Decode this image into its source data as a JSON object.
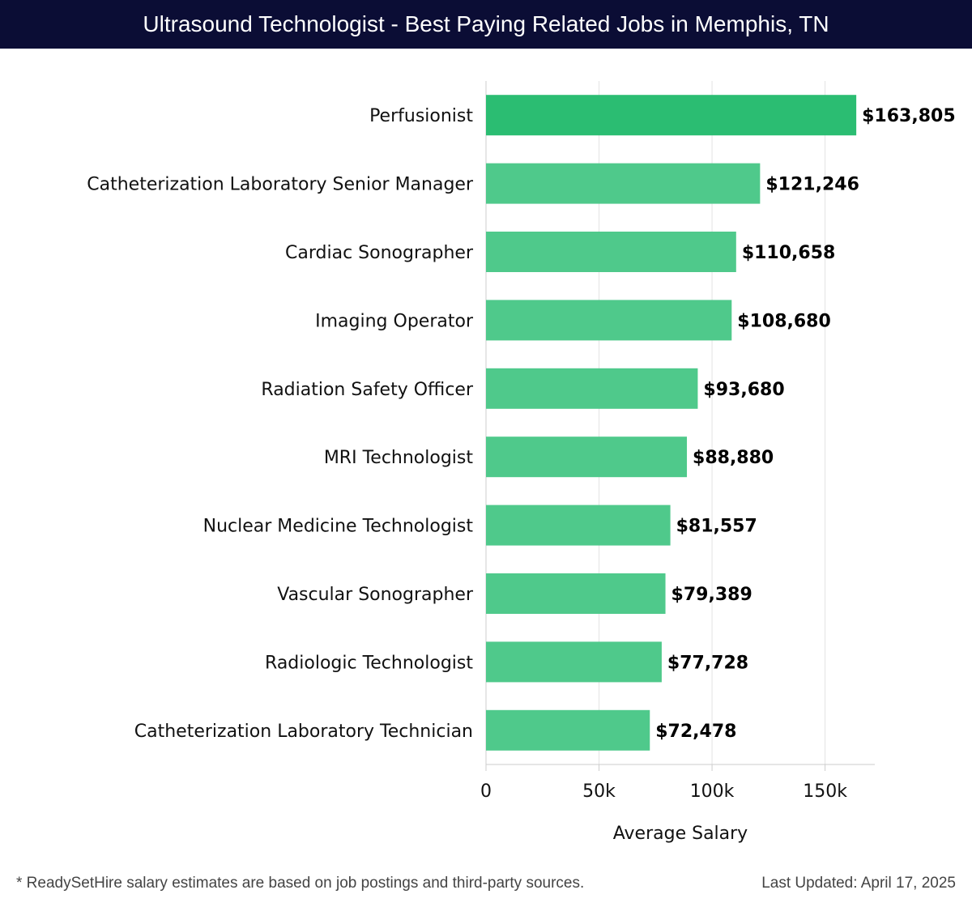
{
  "header": {
    "title": "Ultrasound Technologist - Best Paying Related Jobs in Memphis, TN"
  },
  "footer": {
    "note": "* ReadySetHire salary estimates are based on job postings and third-party sources.",
    "updated": "Last Updated: April 17, 2025"
  },
  "colors": {
    "title_bg": "#0b0d35",
    "bar_top": "#2bbd72",
    "bar_rest": "#4fc98b"
  },
  "chart_data": {
    "type": "bar",
    "orientation": "horizontal",
    "categories": [
      "Perfusionist",
      "Catheterization Laboratory Senior Manager",
      "Cardiac Sonographer",
      "Imaging Operator",
      "Radiation Safety Officer",
      "MRI Technologist",
      "Nuclear Medicine Technologist",
      "Vascular Sonographer",
      "Radiologic Technologist",
      "Catheterization Laboratory Technician"
    ],
    "values": [
      163805,
      121246,
      110658,
      108680,
      93680,
      88880,
      81557,
      79389,
      77728,
      72478
    ],
    "value_labels": [
      "$163,805",
      "$121,246",
      "$110,658",
      "$108,680",
      "$93,680",
      "$88,880",
      "$81,557",
      "$79,389",
      "$77,728",
      "$72,478"
    ],
    "xlabel": "Average Salary",
    "xlim": [
      0,
      172000
    ],
    "xticks": [
      0,
      50000,
      100000,
      150000
    ],
    "xtick_labels": [
      "0",
      "50k",
      "100k",
      "150k"
    ],
    "grid": "vertical"
  }
}
